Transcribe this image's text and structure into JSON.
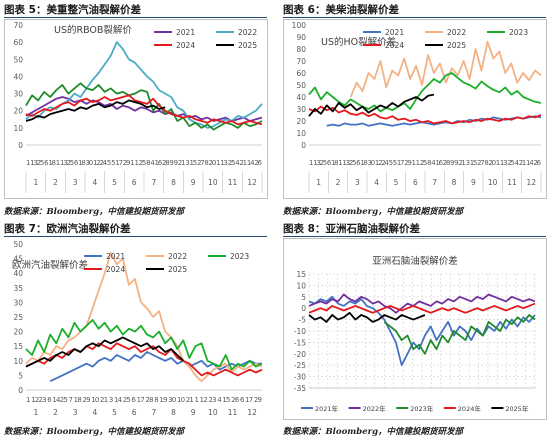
{
  "colors": {
    "2021": "#4472C4",
    "2022": "#F4B183",
    "2023": "#1BAF2A",
    "2024": "#E31A1C",
    "2025": "#000000",
    "purple": "#7030A0",
    "cyan": "#4BACC6",
    "green2": "#1E8B2A"
  },
  "figures": [
    {
      "title": "图表 5：美重整汽油裂解价差",
      "source": "数据来源：Bloomberg，中信建投期货研发部"
    },
    {
      "title": "图表 6：美柴油裂解价差",
      "source": "数据来源：Bloomberg，中信建投期货研发部"
    },
    {
      "title": "图表 7：欧洲汽油裂解价差",
      "source": "数据来源：Bloomberg，中信建投期货研发部"
    },
    {
      "title": "图表 8：亚洲石脑油裂解价差",
      "source": "数据来源：Bloomberg，中信建投期货研发部"
    }
  ],
  "chart_data": [
    {
      "type": "line",
      "title": "US的RBOB裂解价",
      "ylim": [
        0,
        70
      ],
      "yticks": [
        0,
        10,
        20,
        30,
        40,
        50,
        60,
        70
      ],
      "xtick_days": "1 1325 6 18 1 1325 6 18 30 1224 5 5 17 29 1 1 25 8 4 16 28 9 9 21 3 15 27 8 20 1 13 25 4 21 14 26",
      "xtick_months": [
        "1",
        "2",
        "3",
        "4",
        "5",
        "6",
        "7",
        "8",
        "9",
        "10",
        "11",
        "12"
      ],
      "grid": false,
      "legend_placement": "top-right",
      "series": [
        {
          "name": "2021",
          "color_key": "purple",
          "values": [
            17,
            19,
            21,
            23,
            25,
            27,
            28,
            27,
            25,
            26,
            24,
            26,
            25,
            23,
            24,
            21,
            23,
            22,
            20,
            22,
            21,
            19,
            20,
            18,
            19,
            17,
            18,
            16,
            17,
            15,
            16,
            14,
            15,
            16,
            14,
            15,
            16,
            14,
            15,
            16
          ]
        },
        {
          "name": "2022",
          "color_key": "cyan",
          "values": [
            15,
            18,
            16,
            20,
            22,
            21,
            24,
            26,
            30,
            28,
            33,
            38,
            42,
            47,
            52,
            60,
            56,
            50,
            48,
            44,
            40,
            37,
            32,
            30,
            28,
            22,
            20,
            15,
            13,
            12,
            10,
            11,
            13,
            15,
            14,
            17,
            16,
            18,
            20,
            24
          ]
        },
        {
          "name": "2023",
          "color_key": "green2",
          "values": [
            23,
            29,
            26,
            31,
            28,
            32,
            35,
            30,
            33,
            36,
            33,
            32,
            35,
            31,
            33,
            30,
            31,
            29,
            30,
            32,
            31,
            20,
            24,
            18,
            21,
            14,
            16,
            11,
            13,
            10,
            12,
            9,
            11,
            13,
            12,
            10,
            13,
            11,
            12,
            14
          ]
        },
        {
          "name": "2024",
          "color_key": "2024",
          "values": [
            18,
            17,
            19,
            21,
            20,
            22,
            24,
            25,
            23,
            26,
            27,
            25,
            26,
            28,
            26,
            27,
            28,
            29,
            26,
            25,
            24,
            27,
            23,
            20,
            18,
            17,
            16,
            17,
            15,
            14,
            13,
            15,
            14,
            13,
            14,
            12,
            13,
            14,
            13,
            12
          ]
        },
        {
          "name": "2025",
          "color_key": "2025",
          "values": [
            14,
            15,
            17,
            16,
            18,
            19,
            20,
            21,
            20,
            22,
            21,
            23,
            24,
            22,
            23,
            25,
            24,
            26,
            25,
            24,
            22,
            23,
            21,
            22,
            null,
            null,
            null,
            null,
            null,
            null,
            null,
            null,
            null,
            null,
            null,
            null,
            null,
            null,
            null,
            null
          ]
        }
      ]
    },
    {
      "type": "line",
      "title": "US的HO裂解价差",
      "ylim": [
        0,
        100
      ],
      "yticks": [
        0,
        10,
        20,
        30,
        40,
        50,
        60,
        70,
        80,
        90,
        100
      ],
      "xtick_days": "1 1325 6 18 1 1325 6 18 30 1224 5 5 17 29 1 1 25 8 4 16 28 9 9 21 3 15 27 8 20 1 13 25 4 21 14 26",
      "xtick_months": [
        "1",
        "2",
        "3",
        "4",
        "5",
        "6",
        "7",
        "8",
        "9",
        "10",
        "11",
        "12"
      ],
      "grid": false,
      "legend_placement": "top",
      "series": [
        {
          "name": "2021",
          "color_key": "2021",
          "values": [
            null,
            null,
            null,
            16,
            17,
            16,
            18,
            17,
            17,
            18,
            16,
            17,
            18,
            17,
            16,
            17,
            18,
            17,
            18,
            19,
            18,
            17,
            18,
            19,
            18,
            20,
            19,
            21,
            20,
            22,
            21,
            23,
            22,
            21,
            22,
            23,
            22,
            23,
            24,
            23
          ]
        },
        {
          "name": "2022",
          "color_key": "2022",
          "values": [
            null,
            null,
            null,
            null,
            null,
            null,
            null,
            40,
            52,
            45,
            60,
            55,
            70,
            48,
            62,
            58,
            72,
            55,
            66,
            50,
            75,
            60,
            68,
            52,
            64,
            58,
            70,
            55,
            80,
            62,
            86,
            72,
            78,
            60,
            68,
            52,
            60,
            54,
            62,
            58
          ]
        },
        {
          "name": "2023",
          "color_key": "2023",
          "values": [
            42,
            48,
            38,
            44,
            40,
            36,
            33,
            38,
            35,
            32,
            30,
            33,
            28,
            31,
            29,
            32,
            35,
            30,
            38,
            45,
            50,
            55,
            52,
            58,
            60,
            56,
            52,
            50,
            47,
            53,
            49,
            46,
            44,
            48,
            42,
            45,
            40,
            38,
            36,
            35
          ]
        },
        {
          "name": "2024",
          "color_key": "2024",
          "values": [
            30,
            28,
            32,
            29,
            31,
            27,
            29,
            26,
            25,
            27,
            24,
            26,
            23,
            22,
            24,
            21,
            22,
            20,
            21,
            19,
            20,
            18,
            19,
            20,
            18,
            19,
            20,
            19,
            21,
            20,
            22,
            21,
            20,
            22,
            21,
            23,
            22,
            24,
            23,
            25
          ]
        },
        {
          "name": "2025",
          "color_key": "2025",
          "values": [
            24,
            30,
            26,
            33,
            28,
            35,
            31,
            34,
            29,
            32,
            27,
            30,
            33,
            31,
            35,
            32,
            36,
            38,
            40,
            37,
            41,
            42,
            null,
            null,
            null,
            null,
            null,
            null,
            null,
            null,
            null,
            null,
            null,
            null,
            null,
            null,
            null,
            null,
            null,
            null
          ]
        }
      ]
    },
    {
      "type": "line",
      "title": "欧洲汽油裂解价差",
      "ylim": [
        0,
        50
      ],
      "yticks": [
        0,
        5,
        10,
        15,
        20,
        25,
        30,
        35,
        40,
        45,
        50
      ],
      "xtick_days": "1 1223 6 1425 7 18 29 10 21 3 14 25 6 17 28 8 19 30 10 21 1 12 23 4 15 26 6 17 29",
      "xtick_months": [
        "1",
        "2",
        "3",
        "4",
        "5",
        "6",
        "7",
        "8",
        "9",
        "10",
        "11",
        "12"
      ],
      "grid": false,
      "legend_placement": "top",
      "series": [
        {
          "name": "2021",
          "color_key": "2021",
          "values": [
            null,
            null,
            null,
            null,
            3,
            4,
            5,
            6,
            7,
            8,
            9,
            8,
            10,
            11,
            10,
            12,
            11,
            10,
            12,
            11,
            13,
            12,
            11,
            10,
            11,
            9,
            10,
            8,
            9,
            10,
            8,
            9,
            7,
            8,
            9,
            8,
            9,
            10,
            9,
            9
          ]
        },
        {
          "name": "2022",
          "color_key": "2022",
          "values": [
            9,
            11,
            10,
            13,
            12,
            15,
            14,
            17,
            18,
            20,
            22,
            28,
            34,
            40,
            47,
            43,
            45,
            36,
            38,
            30,
            28,
            25,
            27,
            20,
            18,
            15,
            10,
            8,
            5,
            3,
            5,
            7,
            8,
            9,
            6,
            8,
            7,
            8,
            9,
            8
          ]
        },
        {
          "name": "2023",
          "color_key": "2023",
          "values": [
            14,
            12,
            17,
            13,
            19,
            16,
            21,
            18,
            23,
            20,
            22,
            24,
            21,
            23,
            20,
            22,
            19,
            21,
            20,
            22,
            19,
            18,
            20,
            16,
            18,
            14,
            17,
            11,
            15,
            16,
            10,
            9,
            8,
            12,
            7,
            9,
            8,
            10,
            8,
            9
          ]
        },
        {
          "name": "2024",
          "color_key": "2024",
          "values": [
            8,
            9,
            10,
            9,
            11,
            12,
            11,
            13,
            14,
            13,
            15,
            14,
            16,
            15,
            14,
            16,
            15,
            14,
            15,
            13,
            14,
            15,
            13,
            12,
            14,
            11,
            10,
            9,
            7,
            5,
            6,
            5,
            6,
            7,
            6,
            5,
            6,
            7,
            6,
            7
          ]
        },
        {
          "name": "2025",
          "color_key": "2025",
          "values": [
            8,
            9,
            10,
            11,
            10,
            12,
            13,
            12,
            14,
            13,
            15,
            16,
            15,
            17,
            16,
            17,
            18,
            17,
            16,
            15,
            16,
            14,
            15,
            13,
            14,
            12,
            10,
            null,
            null,
            null,
            null,
            null,
            null,
            null,
            null,
            null,
            null,
            null,
            null,
            null
          ]
        }
      ]
    },
    {
      "type": "line",
      "title": "亚洲石脑油裂解价差",
      "ylim": [
        -35,
        15
      ],
      "yticks": [
        -35,
        -30,
        -25,
        -20,
        -15,
        -10,
        -5,
        0,
        5,
        10,
        15
      ],
      "grid": true,
      "legend_placement": "bottom",
      "series": [
        {
          "name": "2021年",
          "color_key": "2021",
          "values": [
            3,
            2,
            4,
            3,
            5,
            2,
            1,
            3,
            2,
            4,
            1,
            0,
            -2,
            -5,
            -10,
            -15,
            -25,
            -20,
            -15,
            -18,
            -12,
            -8,
            -14,
            -10,
            -6,
            -12,
            -8,
            -10,
            -14,
            -9,
            -12,
            -8,
            -10,
            -6,
            -9,
            -5,
            -8,
            -4,
            -6,
            -3
          ]
        },
        {
          "name": "2022年",
          "color_key": "purple",
          "values": [
            1,
            2,
            3,
            2,
            4,
            3,
            6,
            4,
            3,
            5,
            4,
            2,
            3,
            1,
            0,
            -2,
            0,
            2,
            1,
            3,
            2,
            1,
            3,
            2,
            4,
            3,
            5,
            4,
            3,
            5,
            4,
            6,
            5,
            4,
            3,
            5,
            4,
            3,
            4,
            3
          ]
        },
        {
          "name": "2023年",
          "color_key": "green2",
          "values": [
            null,
            null,
            null,
            null,
            null,
            null,
            null,
            null,
            null,
            null,
            null,
            null,
            null,
            -6,
            -8,
            -10,
            -14,
            -12,
            -18,
            -16,
            -20,
            -14,
            -18,
            -12,
            -15,
            -10,
            -12,
            -14,
            -8,
            -10,
            -12,
            -6,
            -8,
            -10,
            -5,
            -7,
            -4,
            -6,
            -3,
            -5
          ]
        },
        {
          "name": "2024年",
          "color_key": "2024",
          "values": [
            -2,
            -1,
            0,
            -1,
            1,
            0,
            -1,
            0,
            1,
            0,
            -1,
            -2,
            -1,
            0,
            1,
            0,
            -1,
            0,
            1,
            0,
            -1,
            -2,
            -1,
            0,
            -1,
            0,
            -1,
            -2,
            -1,
            0,
            -1,
            0,
            1,
            0,
            -1,
            0,
            1,
            0,
            1,
            2
          ]
        },
        {
          "name": "2025年",
          "color_key": "2025",
          "values": [
            -3,
            -5,
            -4,
            -6,
            -3,
            -5,
            -4,
            -2,
            -5,
            -3,
            -4,
            -6,
            -5,
            -3,
            -4,
            -5,
            -3,
            -4,
            -5,
            -4,
            -3,
            null,
            null,
            null,
            null,
            null,
            null,
            null,
            null,
            null,
            null,
            null,
            null,
            null,
            null,
            null,
            null,
            null,
            null,
            null
          ]
        }
      ]
    }
  ]
}
